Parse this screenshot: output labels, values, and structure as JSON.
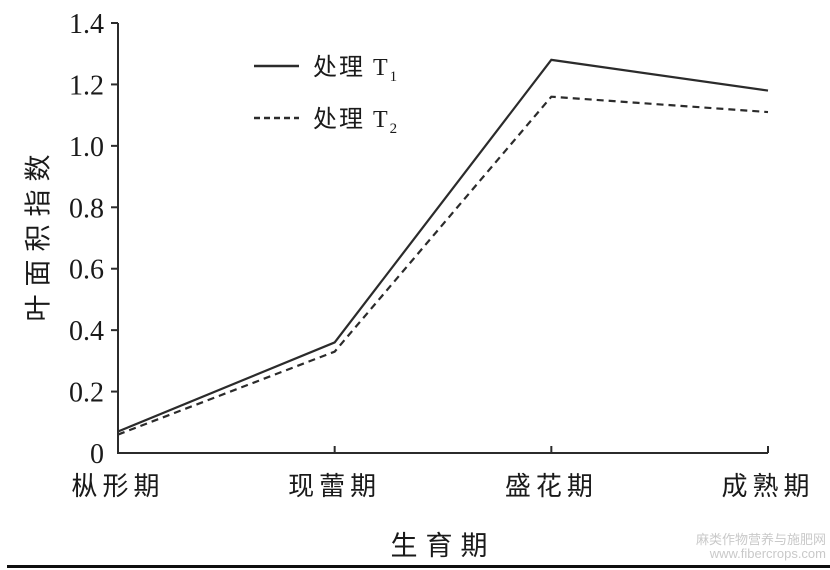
{
  "chart_data": {
    "type": "line",
    "categories": [
      "枞形期",
      "现蕾期",
      "盛花期",
      "成熟期"
    ],
    "series": [
      {
        "name": "处理 T₁",
        "name_base": "处理 T",
        "name_sub": "1",
        "style": "solid",
        "values": [
          0.07,
          0.36,
          1.28,
          1.18
        ]
      },
      {
        "name": "处理 T₂",
        "name_base": "处理 T",
        "name_sub": "2",
        "style": "dashed",
        "values": [
          0.06,
          0.33,
          1.16,
          1.11
        ]
      }
    ],
    "title": "",
    "xlabel": "生育期",
    "ylabel": "叶面积指数",
    "ylim": [
      0,
      1.4
    ],
    "ytick_labels": [
      "0",
      "0.2",
      "0.4",
      "0.6",
      "0.8",
      "1.0",
      "1.2",
      "1.4"
    ],
    "grid": false,
    "legend_position": "upper-left-inside",
    "line_color": "#2b2b2b",
    "text_color": "#1a1a1a"
  },
  "watermark": {
    "line1": "麻类作物营养与施肥网",
    "line2": "www.fibercrops.com"
  }
}
